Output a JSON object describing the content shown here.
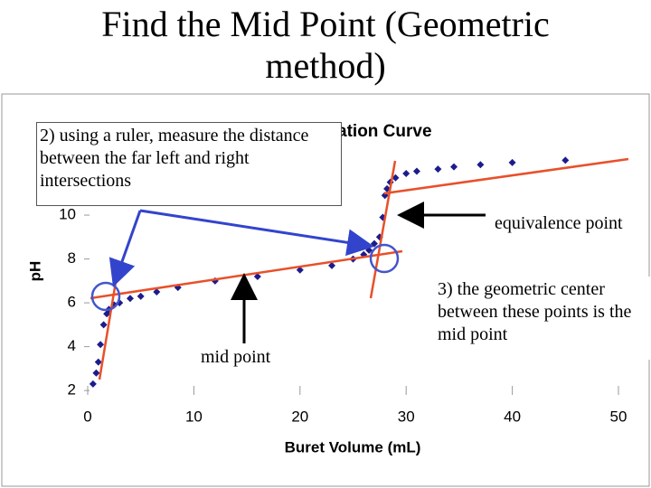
{
  "slide_title": "Find the Mid Point (Geometric method)",
  "chart_data": {
    "type": "scatter",
    "title": "Weak Acid Titration Curve",
    "x_label": "Buret Volume (mL)",
    "y_label": "pH",
    "x": [
      0.5,
      0.8,
      1,
      1.2,
      1.5,
      1.8,
      2,
      2.5,
      3,
      4,
      5,
      6.5,
      8.5,
      12,
      16,
      20,
      23,
      25,
      26,
      26.5,
      27,
      27.5,
      27.8,
      28,
      28.2,
      28.5,
      29,
      30,
      31,
      33,
      34.5,
      37,
      40,
      45
    ],
    "values": [
      2.3,
      2.8,
      3.3,
      4.1,
      5.0,
      5.5,
      5.7,
      5.9,
      6.0,
      6.2,
      6.3,
      6.5,
      6.7,
      7.0,
      7.2,
      7.5,
      7.7,
      8.0,
      8.2,
      8.4,
      8.7,
      9.0,
      9.9,
      10.9,
      11.2,
      11.5,
      11.7,
      11.9,
      12.0,
      12.1,
      12.2,
      12.3,
      12.4,
      12.5
    ],
    "color": "#1c1c8c",
    "xlim": [
      0,
      50
    ],
    "ylim": [
      1.8,
      14
    ],
    "xticks": [
      0,
      10,
      20,
      30,
      40,
      50
    ],
    "yticks": [
      2,
      4,
      6,
      8,
      10
    ],
    "annotations": [
      "2) using a ruler, measure the distance between the far left and right intersections",
      "equivalence point",
      "3) the geometric center between these points is the mid point",
      "mid point"
    ]
  }
}
